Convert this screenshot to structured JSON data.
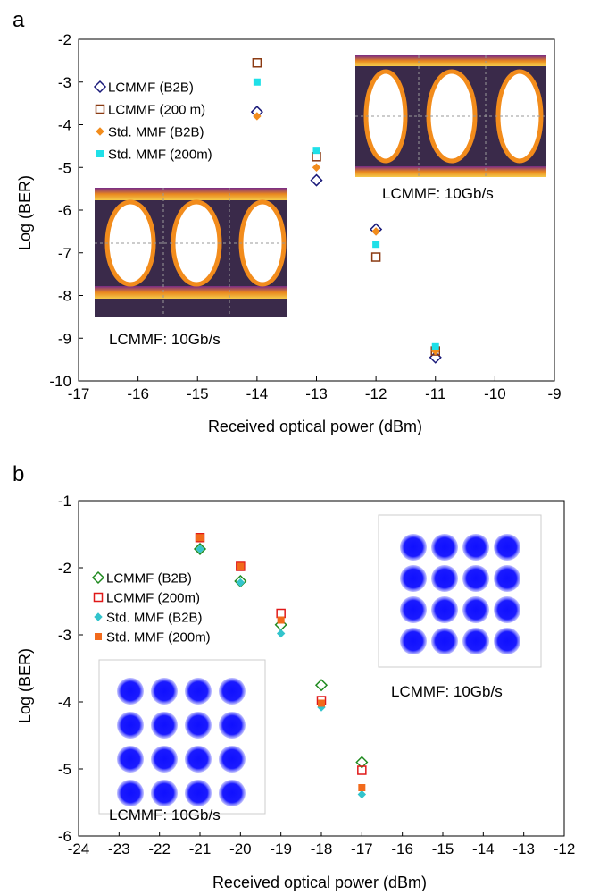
{
  "chart_data": [
    {
      "panel_label": "a",
      "type": "scatter",
      "xlabel": "Received optical power (dBm)",
      "ylabel": "Log (BER)",
      "xlim": [
        -17,
        -9
      ],
      "ylim": [
        -10,
        -2
      ],
      "xticks": [
        "-17",
        "-16",
        "-15",
        "-14",
        "-13",
        "-12",
        "-11",
        "-10",
        "-9"
      ],
      "yticks": [
        "-10",
        "-9",
        "-8",
        "-7",
        "-6",
        "-5",
        "-4",
        "-3",
        "-2"
      ],
      "legend_position": "top-left",
      "series": [
        {
          "name": "LCMMF (B2B)",
          "marker": "diamond-open",
          "color": "#1a1a7a",
          "x": [
            -14,
            -13,
            -12,
            -11
          ],
          "y": [
            -3.7,
            -5.3,
            -6.45,
            -9.45
          ]
        },
        {
          "name": "LCMMF (200 m)",
          "marker": "square-open",
          "color": "#8b3a12",
          "x": [
            -14,
            -13,
            -12,
            -11
          ],
          "y": [
            -2.55,
            -4.75,
            -7.1,
            -9.3
          ]
        },
        {
          "name": "Std. MMF (B2B)",
          "marker": "diamond-filled",
          "color": "#f28c1c",
          "x": [
            -14,
            -13,
            -12,
            -11
          ],
          "y": [
            -3.8,
            -5.0,
            -6.5,
            -9.3
          ]
        },
        {
          "name": "Std. MMF (200m)",
          "marker": "square-filled",
          "color": "#1fe0e8",
          "x": [
            -14,
            -13,
            -12,
            -11
          ],
          "y": [
            -3.0,
            -4.6,
            -6.8,
            -9.2
          ]
        }
      ],
      "insets": [
        {
          "label": "LCMMF: 10Gb/s",
          "kind": "eye-diagram"
        },
        {
          "label": "LCMMF: 10Gb/s",
          "kind": "eye-diagram"
        }
      ]
    },
    {
      "panel_label": "b",
      "type": "scatter",
      "xlabel": "Received optical power (dBm)",
      "ylabel": "Log (BER)",
      "xlim": [
        -24,
        -12
      ],
      "ylim": [
        -6,
        -1
      ],
      "xticks": [
        "-24",
        "-23",
        "-22",
        "-21",
        "-20",
        "-19",
        "-18",
        "-17",
        "-16",
        "-15",
        "-14",
        "-13",
        "-12"
      ],
      "yticks": [
        "-6",
        "-5",
        "-4",
        "-3",
        "-2",
        "-1"
      ],
      "legend_position": "top-left",
      "series": [
        {
          "name": "LCMMF (B2B)",
          "marker": "diamond-open",
          "color": "#1f8a1f",
          "x": [
            -21,
            -20,
            -19,
            -18,
            -17
          ],
          "y": [
            -1.72,
            -2.2,
            -2.85,
            -3.75,
            -4.9
          ]
        },
        {
          "name": "LCMMF (200m)",
          "marker": "square-open",
          "color": "#e01818",
          "x": [
            -21,
            -20,
            -19,
            -18,
            -17
          ],
          "y": [
            -1.55,
            -1.98,
            -2.68,
            -3.98,
            -5.02
          ]
        },
        {
          "name": "Std. MMF (B2B)",
          "marker": "diamond-filled",
          "color": "#33c4cc",
          "x": [
            -21,
            -20,
            -19,
            -18,
            -17
          ],
          "y": [
            -1.72,
            -2.22,
            -2.98,
            -4.08,
            -5.38
          ]
        },
        {
          "name": "Std. MMF (200m)",
          "marker": "square-filled",
          "color": "#f26a1b",
          "x": [
            -21,
            -20,
            -19,
            -18,
            -17
          ],
          "y": [
            -1.55,
            -1.98,
            -2.78,
            -4.02,
            -5.28
          ]
        }
      ],
      "insets": [
        {
          "label": "LCMMF: 10Gb/s",
          "kind": "constellation"
        },
        {
          "label": "LCMMF: 10Gb/s",
          "kind": "constellation"
        }
      ]
    }
  ]
}
